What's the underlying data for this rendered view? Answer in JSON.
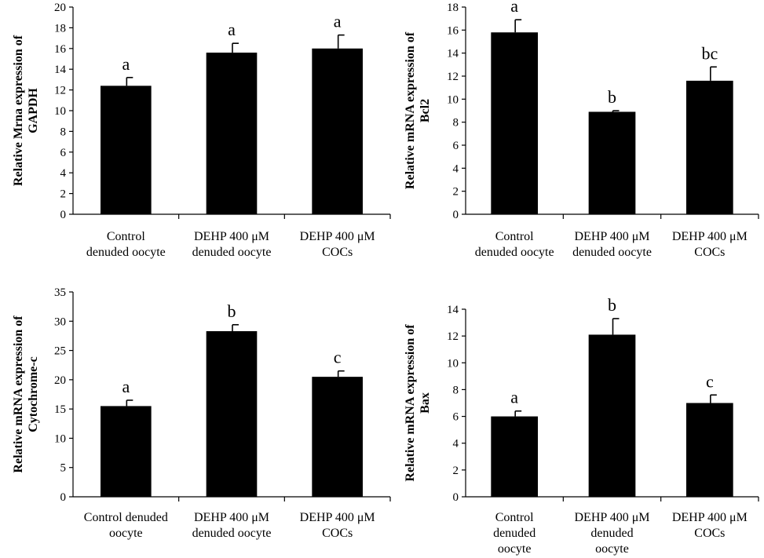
{
  "chart_data": [
    {
      "type": "bar",
      "ylabel": [
        "Relative Mrna expression of",
        "GAPDH"
      ],
      "ylim": [
        0,
        20
      ],
      "ystep": 2,
      "categories": [
        [
          "Control",
          "denuded oocyte"
        ],
        [
          "DEHP 400 μM",
          "denuded oocyte"
        ],
        [
          "DEHP 400 μM",
          "COCs"
        ]
      ],
      "values": [
        12.4,
        15.6,
        16.0
      ],
      "errors": [
        0.8,
        0.9,
        1.3
      ],
      "letters": [
        "a",
        "a",
        "a"
      ]
    },
    {
      "type": "bar",
      "ylabel": [
        "Relative mRNA expression of",
        "Bcl2"
      ],
      "ylim": [
        0,
        18
      ],
      "ystep": 2,
      "categories": [
        [
          "Control",
          "denuded oocyte"
        ],
        [
          "DEHP 400 μM",
          "denuded oocyte"
        ],
        [
          "DEHP 400 μM",
          "COCs"
        ]
      ],
      "values": [
        15.8,
        8.9,
        11.6
      ],
      "errors": [
        1.1,
        0.1,
        1.2
      ],
      "letters": [
        "a",
        "b",
        "bc"
      ]
    },
    {
      "type": "bar",
      "ylabel": [
        "Relative mRNA expression of",
        "Cytochrome-c"
      ],
      "ylim": [
        0,
        35
      ],
      "ystep": 5,
      "categories": [
        [
          "Control denuded",
          "oocyte"
        ],
        [
          "DEHP 400 μM",
          "denuded oocyte"
        ],
        [
          "DEHP 400 μM",
          "COCs"
        ]
      ],
      "values": [
        15.5,
        28.3,
        20.5
      ],
      "errors": [
        1.0,
        1.1,
        1.0
      ],
      "letters": [
        "a",
        "b",
        "c"
      ]
    },
    {
      "type": "bar",
      "ylabel": [
        "Relative mRNA expression of",
        "Bax"
      ],
      "ylim": [
        0,
        14
      ],
      "ystep": 2,
      "categories": [
        [
          "Control",
          "denuded",
          "oocyte"
        ],
        [
          "DEHP 400 μM",
          "denuded",
          "oocyte"
        ],
        [
          "DEHP 400 μM",
          "COCs"
        ]
      ],
      "values": [
        6.0,
        12.1,
        7.0
      ],
      "errors": [
        0.4,
        1.2,
        0.6
      ],
      "letters": [
        "a",
        "b",
        "c"
      ]
    }
  ]
}
